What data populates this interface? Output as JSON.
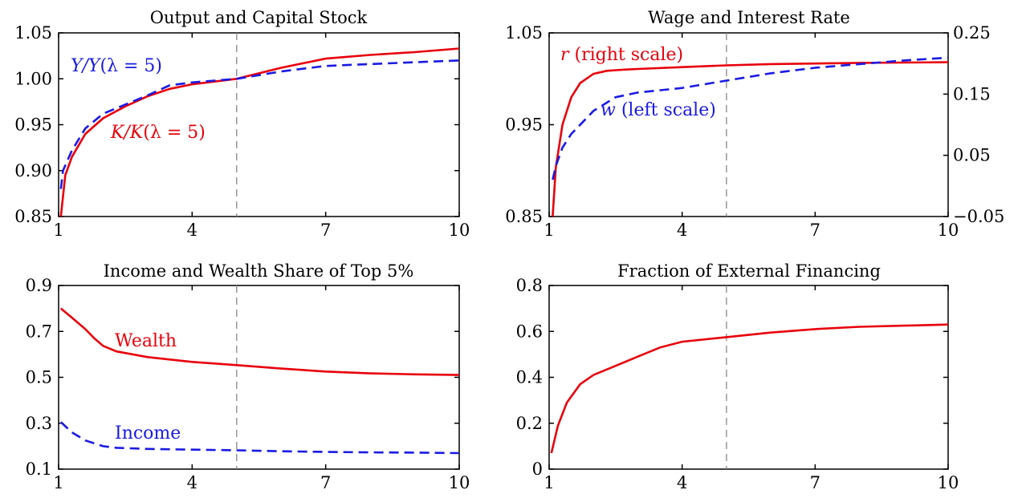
{
  "chart_data": [
    {
      "type": "line",
      "title": "Output and Capital Stock",
      "xlim": [
        1,
        10
      ],
      "ylim": [
        0.85,
        1.05
      ],
      "xticks": [
        "1",
        "4",
        "7",
        "10"
      ],
      "yticks": [
        "0.85",
        "0.90",
        "0.95",
        "1.00",
        "1.05"
      ],
      "vline_x": 5,
      "series": [
        {
          "name": "K/K(λ = 5)",
          "color": "#e8000b",
          "style": "solid",
          "axis": "left",
          "x": [
            1.05,
            1.15,
            1.3,
            1.6,
            2.0,
            2.5,
            3.0,
            3.5,
            4.0,
            4.5,
            5.0,
            6.0,
            7.0,
            8.0,
            9.0,
            10.0
          ],
          "y": [
            0.85,
            0.895,
            0.915,
            0.94,
            0.957,
            0.97,
            0.981,
            0.989,
            0.994,
            0.997,
            1.0,
            1.012,
            1.022,
            1.026,
            1.029,
            1.033
          ]
        },
        {
          "name": "Y/Y(λ = 5)",
          "color": "#1a1ae6",
          "style": "dashed",
          "axis": "left",
          "x": [
            1.05,
            1.1,
            1.3,
            1.6,
            2.0,
            2.5,
            3.0,
            3.5,
            4.0,
            4.5,
            5.0,
            6.0,
            7.0,
            8.0,
            9.0,
            10.0
          ],
          "y": [
            0.88,
            0.9,
            0.922,
            0.946,
            0.962,
            0.972,
            0.982,
            0.993,
            0.996,
            0.998,
            1.0,
            1.008,
            1.014,
            1.016,
            1.018,
            1.02
          ]
        }
      ],
      "annotations": [
        {
          "text_a": "Y/Y",
          "text_b": "(λ = 5)",
          "color": "#1a1ae6"
        },
        {
          "text_a": "K/K",
          "text_b": "(λ = 5)",
          "color": "#e8000b"
        }
      ]
    },
    {
      "type": "line",
      "title": "Wage and Interest Rate",
      "xlim": [
        1,
        10
      ],
      "ylim": [
        0.85,
        1.05
      ],
      "ylim_right": [
        -0.05,
        0.25
      ],
      "xticks": [
        "1",
        "4",
        "7",
        "10"
      ],
      "yticks": [
        "0.85",
        "0.95",
        "1.05"
      ],
      "yticks_right": [
        "−0.05",
        "0.05",
        "0.15",
        "0.25"
      ],
      "vline_x": 5,
      "series": [
        {
          "name": "r (right scale)",
          "color": "#e8000b",
          "style": "solid",
          "axis": "right",
          "x": [
            1.08,
            1.15,
            1.3,
            1.5,
            1.7,
            2.0,
            2.3,
            2.7,
            3.0,
            4.0,
            5.0,
            6.0,
            7.0,
            8.0,
            9.0,
            10.0
          ],
          "y": [
            -0.05,
            0.03,
            0.1,
            0.145,
            0.168,
            0.183,
            0.188,
            0.19,
            0.191,
            0.194,
            0.197,
            0.199,
            0.2,
            0.201,
            0.2015,
            0.202
          ]
        },
        {
          "name": "w (left scale)",
          "color": "#1a1ae6",
          "style": "dashed",
          "axis": "left",
          "x": [
            1.08,
            1.15,
            1.3,
            1.5,
            1.8,
            2.0,
            2.5,
            3.0,
            4.0,
            5.0,
            6.0,
            7.0,
            8.0,
            9.0,
            10.0
          ],
          "y": [
            0.89,
            0.905,
            0.925,
            0.94,
            0.955,
            0.965,
            0.98,
            0.985,
            0.99,
            0.998,
            1.006,
            1.012,
            1.016,
            1.02,
            1.023
          ]
        }
      ],
      "annotations": [
        {
          "text_a": "r",
          "text_b": " (right scale)",
          "color": "#e8000b"
        },
        {
          "text_a": "w",
          "text_b": " (left scale)",
          "color": "#1a1ae6"
        }
      ]
    },
    {
      "type": "line",
      "title": "Income and Wealth Share of Top 5%",
      "xlim": [
        1,
        10
      ],
      "ylim": [
        0.1,
        0.9
      ],
      "xticks": [
        "1",
        "4",
        "7",
        "10"
      ],
      "yticks": [
        "0.1",
        "0.3",
        "0.5",
        "0.7",
        "0.9"
      ],
      "vline_x": 5,
      "series": [
        {
          "name": "Wealth",
          "color": "#e8000b",
          "style": "solid",
          "axis": "left",
          "x": [
            1.05,
            1.3,
            1.6,
            1.8,
            2.0,
            2.3,
            3.0,
            4.0,
            5.0,
            6.0,
            7.0,
            8.0,
            9.0,
            10.0
          ],
          "y": [
            0.8,
            0.76,
            0.71,
            0.67,
            0.637,
            0.613,
            0.588,
            0.567,
            0.553,
            0.538,
            0.525,
            0.517,
            0.513,
            0.51
          ]
        },
        {
          "name": "Income",
          "color": "#1a1ae6",
          "style": "dashed",
          "axis": "left",
          "x": [
            1.05,
            1.3,
            1.6,
            2.0,
            2.3,
            3.0,
            4.0,
            5.0,
            6.0,
            7.0,
            8.0,
            9.0,
            10.0
          ],
          "y": [
            0.305,
            0.26,
            0.225,
            0.2,
            0.193,
            0.188,
            0.185,
            0.182,
            0.178,
            0.175,
            0.173,
            0.172,
            0.17
          ]
        }
      ],
      "annotations": [
        {
          "text_a": "Wealth",
          "text_b": "",
          "color": "#e8000b"
        },
        {
          "text_a": "Income",
          "text_b": "",
          "color": "#1a1ae6"
        }
      ]
    },
    {
      "type": "line",
      "title": "Fraction of External Financing",
      "xlim": [
        1,
        10
      ],
      "ylim": [
        0,
        0.8
      ],
      "xticks": [
        "1",
        "4",
        "7",
        "10"
      ],
      "yticks": [
        "0",
        "0.2",
        "0.4",
        "0.6",
        "0.8"
      ],
      "vline_x": 5,
      "series": [
        {
          "name": "",
          "color": "#e8000b",
          "style": "solid",
          "axis": "left",
          "x": [
            1.05,
            1.2,
            1.4,
            1.7,
            2.0,
            2.5,
            3.0,
            3.5,
            4.0,
            5.0,
            6.0,
            7.0,
            8.0,
            9.0,
            10.0
          ],
          "y": [
            0.07,
            0.19,
            0.29,
            0.37,
            0.41,
            0.45,
            0.49,
            0.53,
            0.555,
            0.575,
            0.595,
            0.61,
            0.62,
            0.625,
            0.63
          ]
        }
      ],
      "annotations": []
    }
  ]
}
